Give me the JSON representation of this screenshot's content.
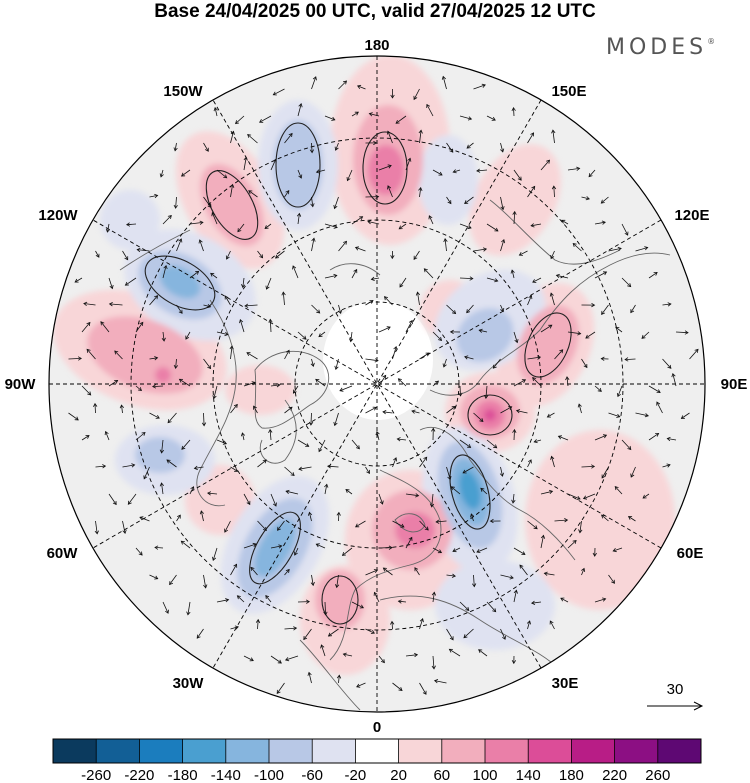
{
  "title": "Base 24/04/2025 00 UTC, valid 27/04/2025 12 UTC",
  "brand": "MODES",
  "brand_mark": "®",
  "longitude_labels": [
    {
      "text": "180",
      "lon": 180
    },
    {
      "text": "150E",
      "lon": 150
    },
    {
      "text": "120E",
      "lon": 120
    },
    {
      "text": "90E",
      "lon": 90
    },
    {
      "text": "60E",
      "lon": 60
    },
    {
      "text": "30E",
      "lon": 30
    },
    {
      "text": "0",
      "lon": 0
    },
    {
      "text": "30W",
      "lon": -30
    },
    {
      "text": "60W",
      "lon": -60
    },
    {
      "text": "90W",
      "lon": -90
    },
    {
      "text": "120W",
      "lon": -120
    },
    {
      "text": "150W",
      "lon": -150
    }
  ],
  "reference_vector": {
    "label": "30"
  },
  "colorbar": {
    "tick_labels": [
      "-260",
      "-220",
      "-180",
      "-140",
      "-100",
      "-60",
      "-20",
      "20",
      "60",
      "100",
      "140",
      "180",
      "220",
      "260"
    ],
    "colors": [
      "#0b3a5e",
      "#125f96",
      "#1b7dbe",
      "#4a9fd0",
      "#86b5de",
      "#b8c8e6",
      "#dfe2f1",
      "#ffffff",
      "#f8d6d8",
      "#f2aebd",
      "#ea7fa8",
      "#dc4d98",
      "#b81d86",
      "#8c0f83",
      "#5e0873"
    ]
  },
  "map_colors": {
    "land_gray": "#e8e8e8",
    "ocean_white": "#ffffff",
    "coast": "#555555",
    "grid": "#000000"
  }
}
